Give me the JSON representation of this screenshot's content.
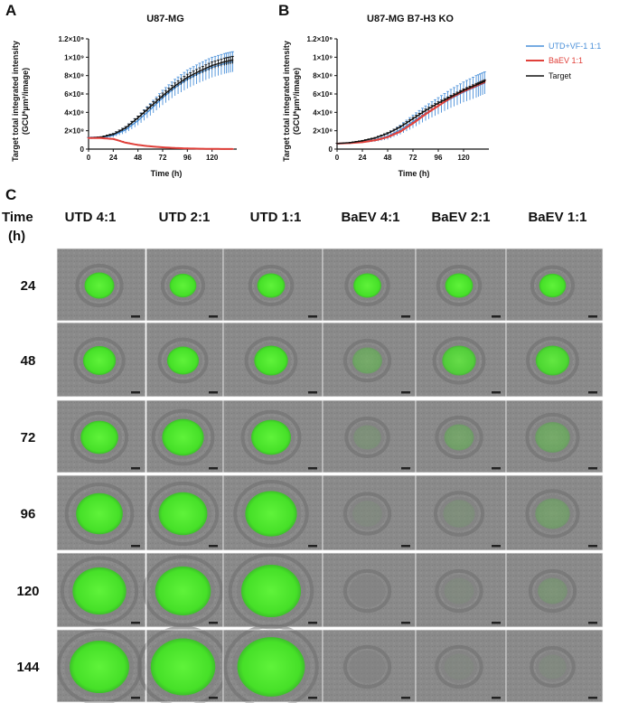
{
  "panel_letters": [
    "A",
    "B",
    "C"
  ],
  "chart_data": [
    {
      "type": "line",
      "title": "U87-MG",
      "xlabel": "Time (h)",
      "ylabel_line1": "Target total integrated intensity",
      "ylabel_line2": "(GCU*µm²/image)",
      "xlim": [
        0,
        144
      ],
      "ylim": [
        0,
        1200000000.0
      ],
      "xticks": [
        0,
        24,
        48,
        72,
        96,
        120
      ],
      "xtick_labels": [
        "0",
        "24",
        "48",
        "72",
        "96",
        "120"
      ],
      "yticks": [
        0,
        200000000.0,
        400000000.0,
        600000000.0,
        800000000.0,
        1000000000.0,
        1200000000.0
      ],
      "ytick_labels": [
        "0",
        "2×10⁸",
        "4×10⁸",
        "6×10⁸",
        "8×10⁸",
        "1×10⁹",
        "1.2×10⁹"
      ],
      "x": [
        0,
        12,
        24,
        36,
        48,
        60,
        72,
        84,
        96,
        108,
        120,
        132,
        140
      ],
      "series": [
        {
          "name": "UTD+VF-1 1:1",
          "color": "#4a90d9",
          "values": [
            120000000.0,
            125000000.0,
            150000000.0,
            210000000.0,
            310000000.0,
            430000000.0,
            560000000.0,
            670000000.0,
            760000000.0,
            830000000.0,
            890000000.0,
            930000000.0,
            950000000.0
          ],
          "error": [
            10000000.0,
            10000000.0,
            20000000.0,
            35000000.0,
            50000000.0,
            65000000.0,
            80000000.0,
            90000000.0,
            100000000.0,
            105000000.0,
            110000000.0,
            110000000.0,
            110000000.0
          ]
        },
        {
          "name": "BaEV 1:1",
          "color": "#e0403a",
          "values": [
            120000000.0,
            120000000.0,
            110000000.0,
            70000000.0,
            45000000.0,
            30000000.0,
            20000000.0,
            12000000.0,
            7000000.0,
            4000000.0,
            2000000.0,
            1000000.0,
            1000000.0
          ],
          "error": [
            5000000.0,
            5000000.0,
            5000000.0,
            5000000.0,
            3000000.0,
            2000000.0,
            2000000.0,
            1000000.0,
            1000000.0,
            1000000.0,
            1000000.0,
            1000000.0,
            1000000.0
          ]
        },
        {
          "name": "Target",
          "color": "#111111",
          "values": [
            120000000.0,
            130000000.0,
            160000000.0,
            230000000.0,
            340000000.0,
            460000000.0,
            580000000.0,
            690000000.0,
            780000000.0,
            850000000.0,
            910000000.0,
            950000000.0,
            970000000.0
          ],
          "error": [
            5000000.0,
            5000000.0,
            10000000.0,
            15000000.0,
            20000000.0,
            25000000.0,
            30000000.0,
            30000000.0,
            35000000.0,
            35000000.0,
            40000000.0,
            40000000.0,
            40000000.0
          ]
        }
      ]
    },
    {
      "type": "line",
      "title": "U87-MG B7-H3 KO",
      "xlabel": "Time (h)",
      "ylabel_line1": "Target total integrated intensity",
      "ylabel_line2": "(GCU*µm²/image)",
      "xlim": [
        0,
        144
      ],
      "ylim": [
        0,
        1200000000.0
      ],
      "xticks": [
        0,
        24,
        48,
        72,
        96,
        120
      ],
      "xtick_labels": [
        "0",
        "24",
        "48",
        "72",
        "96",
        "120"
      ],
      "yticks": [
        0,
        200000000.0,
        400000000.0,
        600000000.0,
        800000000.0,
        1000000000.0,
        1200000000.0
      ],
      "ytick_labels": [
        "0",
        "2×10⁸",
        "4×10⁸",
        "6×10⁸",
        "8×10⁸",
        "1×10⁹",
        "1.2×10⁹"
      ],
      "x": [
        0,
        12,
        24,
        36,
        48,
        60,
        72,
        84,
        96,
        108,
        120,
        132,
        140
      ],
      "series": [
        {
          "name": "UTD+VF-1 1:1",
          "color": "#4a90d9",
          "values": [
            60000000.0,
            65000000.0,
            80000000.0,
            100000000.0,
            140000000.0,
            210000000.0,
            300000000.0,
            390000000.0,
            470000000.0,
            550000000.0,
            620000000.0,
            680000000.0,
            720000000.0
          ],
          "error": [
            5000000.0,
            5000000.0,
            10000000.0,
            20000000.0,
            35000000.0,
            50000000.0,
            70000000.0,
            80000000.0,
            90000000.0,
            100000000.0,
            110000000.0,
            120000000.0,
            120000000.0
          ]
        },
        {
          "name": "BaEV 1:1",
          "color": "#e0403a",
          "values": [
            60000000.0,
            65000000.0,
            75000000.0,
            95000000.0,
            130000000.0,
            190000000.0,
            280000000.0,
            380000000.0,
            470000000.0,
            560000000.0,
            630000000.0,
            690000000.0,
            730000000.0
          ],
          "error": [
            3000000.0,
            3000000.0,
            5000000.0,
            6000000.0,
            8000000.0,
            10000000.0,
            12000000.0,
            14000000.0,
            15000000.0,
            15000000.0,
            15000000.0,
            15000000.0,
            15000000.0
          ]
        },
        {
          "name": "Target",
          "color": "#111111",
          "values": [
            60000000.0,
            70000000.0,
            90000000.0,
            120000000.0,
            170000000.0,
            240000000.0,
            330000000.0,
            420000000.0,
            500000000.0,
            570000000.0,
            640000000.0,
            700000000.0,
            740000000.0
          ],
          "error": [
            3000000.0,
            3000000.0,
            5000000.0,
            7000000.0,
            10000000.0,
            12000000.0,
            15000000.0,
            15000000.0,
            15000000.0,
            15000000.0,
            15000000.0,
            15000000.0,
            15000000.0
          ]
        }
      ],
      "legend": [
        {
          "label": "UTD+VF-1 1:1",
          "color": "#4a90d9"
        },
        {
          "label": "BaEV 1:1",
          "color": "#e0403a"
        },
        {
          "label": "Target",
          "color": "#111111"
        }
      ]
    }
  ],
  "grid": {
    "time_label": "Time",
    "time_unit": "(h)",
    "columns": [
      "UTD 4:1",
      "UTD 2:1",
      "UTD 1:1",
      "BaEV 4:1",
      "BaEV 2:1",
      "BaEV 1:1"
    ],
    "rows": [
      {
        "time": "24",
        "spheroid_fraction": [
          0.3,
          0.27,
          0.28,
          0.28,
          0.28,
          0.27
        ],
        "green_intensity": [
          1.0,
          1.0,
          1.0,
          1.0,
          1.0,
          1.0
        ]
      },
      {
        "time": "48",
        "spheroid_fraction": [
          0.33,
          0.32,
          0.34,
          0.3,
          0.34,
          0.34
        ],
        "green_intensity": [
          1.0,
          1.0,
          1.0,
          0.35,
          0.8,
          0.9
        ]
      },
      {
        "time": "72",
        "spheroid_fraction": [
          0.38,
          0.42,
          0.4,
          0.28,
          0.3,
          0.35
        ],
        "green_intensity": [
          1.0,
          1.0,
          1.0,
          0.12,
          0.3,
          0.35
        ]
      },
      {
        "time": "96",
        "spheroid_fraction": [
          0.47,
          0.49,
          0.52,
          0.3,
          0.32,
          0.35
        ],
        "green_intensity": [
          1.0,
          1.0,
          1.0,
          0.05,
          0.1,
          0.25
        ]
      },
      {
        "time": "120",
        "spheroid_fraction": [
          0.54,
          0.56,
          0.6,
          0.3,
          0.3,
          0.3
        ],
        "green_intensity": [
          1.0,
          1.0,
          1.0,
          0.0,
          0.05,
          0.15
        ]
      },
      {
        "time": "144",
        "spheroid_fraction": [
          0.6,
          0.65,
          0.68,
          0.3,
          0.3,
          0.28
        ],
        "green_intensity": [
          1.0,
          1.0,
          1.0,
          0.0,
          0.03,
          0.05
        ]
      }
    ]
  }
}
